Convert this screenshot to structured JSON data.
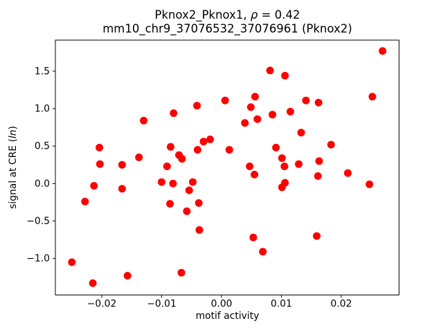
{
  "figure": {
    "title_line1_prefix": "Pknox2_Pknox1, ",
    "title_rho": "ρ",
    "title_line1_suffix": " = 0.42",
    "title_line2": "mm10_chr9_37076532_37076961 (Pknox2)",
    "xlabel": "motif activity",
    "ylabel_prefix": "signal at CRE (",
    "ylabel_italic": "ln",
    "ylabel_suffix": ")"
  },
  "chart_data": {
    "type": "scatter",
    "title": "Pknox2_Pknox1, ρ = 0.42\nmm10_chr9_37076532_37076961 (Pknox2)",
    "xlabel": "motif activity",
    "ylabel": "signal at CRE (ln)",
    "correlation_rho": 0.42,
    "legend": null,
    "grid": false,
    "marker_color": "#ff0000",
    "axis_color": "#000000",
    "marker_radius_px": 5.5,
    "xlim": [
      -0.02775,
      0.02965
    ],
    "ylim": [
      -1.488,
      1.915
    ],
    "xtick_values": [
      -0.02,
      -0.01,
      0.0,
      0.01,
      0.02
    ],
    "xtick_labels": [
      "−0.02",
      "−0.01",
      "0.00",
      "0.01",
      "0.02"
    ],
    "ytick_values": [
      1.5,
      1.0,
      0.5,
      0.0,
      -0.5,
      -1.0
    ],
    "ytick_labels": [
      "1.5",
      "1.0",
      "0.5",
      "0.0",
      "−0.5",
      "−1.0"
    ],
    "points": [
      [
        -0.025,
        -1.05
      ],
      [
        -0.0228,
        -0.24
      ],
      [
        -0.0215,
        -1.33
      ],
      [
        -0.0213,
        -0.03
      ],
      [
        -0.0204,
        0.48
      ],
      [
        -0.0203,
        0.26
      ],
      [
        -0.0166,
        0.25
      ],
      [
        -0.0166,
        -0.07
      ],
      [
        -0.0157,
        -1.23
      ],
      [
        -0.0138,
        0.35
      ],
      [
        -0.013,
        0.84
      ],
      [
        -0.01,
        0.02
      ],
      [
        -0.0091,
        0.23
      ],
      [
        -0.0086,
        -0.27
      ],
      [
        -0.0085,
        0.49
      ],
      [
        -0.0081,
        0.0
      ],
      [
        -0.008,
        0.94
      ],
      [
        -0.0071,
        0.38
      ],
      [
        -0.0066,
        0.33
      ],
      [
        -0.0067,
        -1.19
      ],
      [
        -0.0058,
        -0.37
      ],
      [
        -0.0054,
        -0.09
      ],
      [
        -0.0048,
        0.02
      ],
      [
        -0.0041,
        1.04
      ],
      [
        -0.004,
        0.45
      ],
      [
        -0.0038,
        -0.26
      ],
      [
        -0.0037,
        -0.62
      ],
      [
        -0.003,
        0.56
      ],
      [
        -0.0019,
        0.59
      ],
      [
        0.0006,
        1.11
      ],
      [
        0.0013,
        0.45
      ],
      [
        0.0039,
        0.81
      ],
      [
        0.0047,
        0.23
      ],
      [
        0.0049,
        1.02
      ],
      [
        0.0053,
        -0.72
      ],
      [
        0.0055,
        0.12
      ],
      [
        0.0056,
        1.16
      ],
      [
        0.006,
        0.86
      ],
      [
        0.0069,
        -0.91
      ],
      [
        0.0081,
        1.51
      ],
      [
        0.0085,
        0.92
      ],
      [
        0.0091,
        0.48
      ],
      [
        0.0101,
        0.34
      ],
      [
        0.0101,
        -0.05
      ],
      [
        0.0105,
        0.23
      ],
      [
        0.0106,
        1.44
      ],
      [
        0.0106,
        0.01
      ],
      [
        0.0115,
        0.96
      ],
      [
        0.0129,
        0.26
      ],
      [
        0.0133,
        0.68
      ],
      [
        0.0141,
        1.11
      ],
      [
        0.0159,
        -0.7
      ],
      [
        0.0161,
        0.1
      ],
      [
        0.0162,
        1.08
      ],
      [
        0.0163,
        0.3
      ],
      [
        0.0183,
        0.52
      ],
      [
        0.0211,
        0.14
      ],
      [
        0.0247,
        -0.01
      ],
      [
        0.0252,
        1.16
      ],
      [
        0.0269,
        1.77
      ]
    ]
  }
}
